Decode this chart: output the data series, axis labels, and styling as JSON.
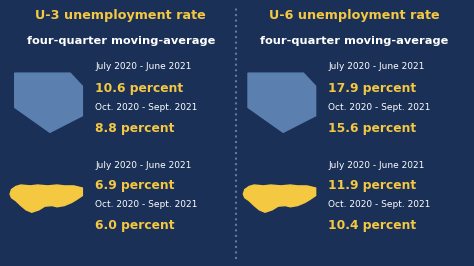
{
  "bg_color": "#1a3057",
  "divider_color": "#5a7aaa",
  "title_color": "#f5c842",
  "subtitle_color": "#ffffff",
  "date_color": "#ffffff",
  "value_color": "#f5c842",
  "nevada_color": "#5b80b0",
  "usa_color": "#f5c842",
  "left_title": "U-3 unemployment rate",
  "right_title": "U-6 unemployment rate",
  "subtitle": "four-quarter moving-average",
  "left_nv_date1": "July 2020 - June 2021",
  "left_nv_val1": "10.6 percent",
  "left_nv_date2": "Oct. 2020 - Sept. 2021",
  "left_nv_val2": "8.8 percent",
  "left_us_date1": "July 2020 - June 2021",
  "left_us_val1": "6.9 percent",
  "left_us_date2": "Oct. 2020 - Sept. 2021",
  "left_us_val2": "6.0 percent",
  "right_nv_date1": "July 2020 - June 2021",
  "right_nv_val1": "17.9 percent",
  "right_nv_date2": "Oct. 2020 - Sept. 2021",
  "right_nv_val2": "15.6 percent",
  "right_us_date1": "July 2020 - June 2021",
  "right_us_val1": "11.9 percent",
  "right_us_date2": "Oct. 2020 - Sept. 2021",
  "right_us_val2": "10.4 percent",
  "title_fontsize": 9.2,
  "subtitle_fontsize": 8.2,
  "date_fontsize": 6.5,
  "value_fontsize": 8.8
}
